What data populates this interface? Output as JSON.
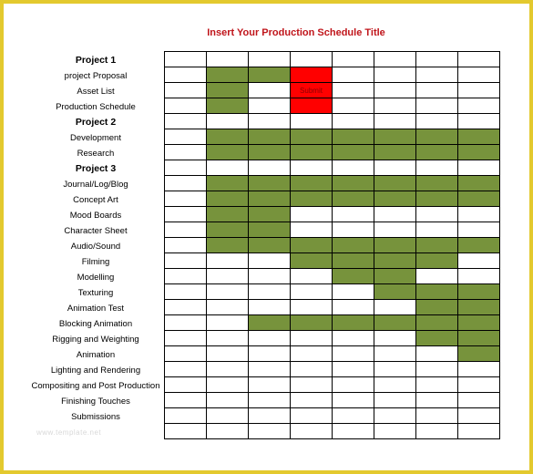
{
  "title": "Insert Your Production Schedule Title",
  "rows": [
    {
      "label": "Project 1",
      "heading": true,
      "cells": "........"
    },
    {
      "label": "project Proposal",
      "heading": false,
      "cells": ".GGR...."
    },
    {
      "label": "Asset List",
      "heading": false,
      "cells": ".G.R...."
    },
    {
      "label": "Production Schedule",
      "heading": false,
      "cells": ".G.R...."
    },
    {
      "label": "Project 2",
      "heading": true,
      "cells": "........"
    },
    {
      "label": "Development",
      "heading": false,
      "cells": ".GGGGGGG"
    },
    {
      "label": "Research",
      "heading": false,
      "cells": ".GGGGGGG"
    },
    {
      "label": "Project 3",
      "heading": true,
      "cells": "........"
    },
    {
      "label": "Journal/Log/Blog",
      "heading": false,
      "cells": ".GGGGGGG"
    },
    {
      "label": "Concept Art",
      "heading": false,
      "cells": ".GGGGGGG"
    },
    {
      "label": "Mood Boards",
      "heading": false,
      "cells": ".GG....."
    },
    {
      "label": "Character Sheet",
      "heading": false,
      "cells": ".GG....."
    },
    {
      "label": "Audio/Sound",
      "heading": false,
      "cells": ".GGGGGGG"
    },
    {
      "label": "Filming",
      "heading": false,
      "cells": "...GGGG."
    },
    {
      "label": "Modelling",
      "heading": false,
      "cells": "....GG.."
    },
    {
      "label": "Texturing",
      "heading": false,
      "cells": ".....GGG"
    },
    {
      "label": "Animation Test",
      "heading": false,
      "cells": "......GG"
    },
    {
      "label": "Blocking Animation",
      "heading": false,
      "cells": "..GGGGGG"
    },
    {
      "label": "Rigging and Weighting",
      "heading": false,
      "cells": "......GG"
    },
    {
      "label": "Animation",
      "heading": false,
      "cells": ".......G"
    },
    {
      "label": "Lighting and Rendering",
      "heading": false,
      "cells": "........"
    },
    {
      "label": "Compositing and Post Production",
      "heading": false,
      "cells": "........"
    },
    {
      "label": "Finishing Touches",
      "heading": false,
      "cells": "........"
    },
    {
      "label": "Submissions",
      "heading": false,
      "cells": "........"
    },
    {
      "label": "",
      "heading": false,
      "cells": "........"
    }
  ],
  "submit_cell_text": "Submit",
  "watermark": "www.template.net",
  "colors": {
    "scheduled": "#77933c",
    "milestone": "#ff0000",
    "title": "#c0151b",
    "frame": "#e3c92e"
  }
}
